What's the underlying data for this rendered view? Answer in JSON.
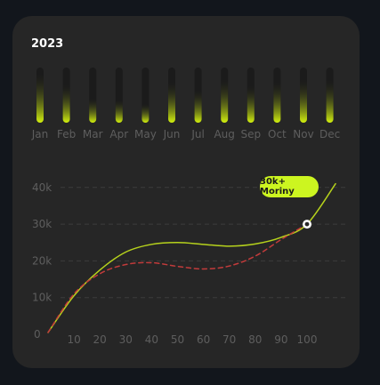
{
  "card": {
    "year": "2023"
  },
  "chart_data": [
    {
      "type": "bar",
      "categories": [
        "Jan",
        "Feb",
        "Mar",
        "Apr",
        "May",
        "Jun",
        "Jul",
        "Aug",
        "Sep",
        "Oct",
        "Nov",
        "Dec"
      ],
      "values": [
        0.9,
        0.7,
        0.45,
        0.42,
        0.35,
        0.75,
        0.6,
        0.8,
        0.68,
        0.75,
        0.8,
        0.78
      ],
      "ylim": [
        0,
        1
      ]
    },
    {
      "type": "line",
      "x_ticks": [
        10,
        20,
        30,
        40,
        50,
        60,
        70,
        80,
        90,
        100
      ],
      "y_ticks": [
        0,
        10,
        20,
        30,
        40
      ],
      "y_tick_labels": [
        "0",
        "10k",
        "20k",
        "30k",
        "40k"
      ],
      "xlim": [
        0,
        111
      ],
      "ylim": [
        0,
        40
      ],
      "grid": "horizontal-dashed",
      "series": [
        {
          "x": [
            0,
            10,
            20,
            30,
            40,
            50,
            60,
            70,
            80,
            90,
            100,
            111
          ],
          "y": [
            0.5,
            10.5,
            17.5,
            22.4,
            24.5,
            25.0,
            24.5,
            24.0,
            24.6,
            26.4,
            30.0,
            41.0
          ],
          "color": "#b6d21c"
        },
        {
          "x": [
            0,
            10,
            20,
            30,
            40,
            50,
            60,
            70,
            80,
            90,
            100
          ],
          "y": [
            0.5,
            11.0,
            16.5,
            19.0,
            19.5,
            18.5,
            17.8,
            18.6,
            21.3,
            25.8,
            30.0
          ],
          "color": "#c23b3b",
          "style": "dashed"
        }
      ],
      "highlight": {
        "x": 100,
        "y": 30,
        "label": "30k+ Moriny"
      }
    }
  ]
}
